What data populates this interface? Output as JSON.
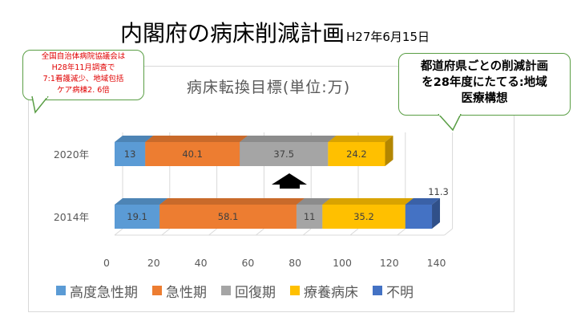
{
  "page": {
    "title": "内閣府の病床削減計画",
    "title_date": "H27年6月15日",
    "note_left": [
      "全国自治体病院協議会は",
      "H28年11月調査で",
      "7:1看護減少、地域包括",
      "ケア病棟2. 6倍"
    ],
    "note_right": [
      "都道府県ごとの削減計画",
      "を28年度にたてる:地域",
      "医療構想"
    ]
  },
  "chart_data": {
    "type": "bar",
    "stacked": true,
    "orientation": "horizontal",
    "title": "病床転換目標(単位:万)",
    "categories": [
      "2020年",
      "2014年"
    ],
    "series": [
      {
        "name": "高度急性期",
        "color": "#5b9bd5",
        "values": [
          13,
          19.1
        ]
      },
      {
        "name": "急性期",
        "color": "#ed7d31",
        "values": [
          40.1,
          58.1
        ]
      },
      {
        "name": "回復期",
        "color": "#a5a5a5",
        "values": [
          37.5,
          11
        ]
      },
      {
        "name": "療養病床",
        "color": "#ffc000",
        "values": [
          24.2,
          35.2
        ]
      },
      {
        "name": "不明",
        "color": "#4472c4",
        "values": [
          null,
          11.3
        ]
      }
    ],
    "x_ticks": [
      "0",
      "20",
      "40",
      "60",
      "80",
      "100",
      "120",
      "140"
    ],
    "xlim": [
      0,
      140
    ],
    "grid": true,
    "legend_position": "bottom"
  }
}
